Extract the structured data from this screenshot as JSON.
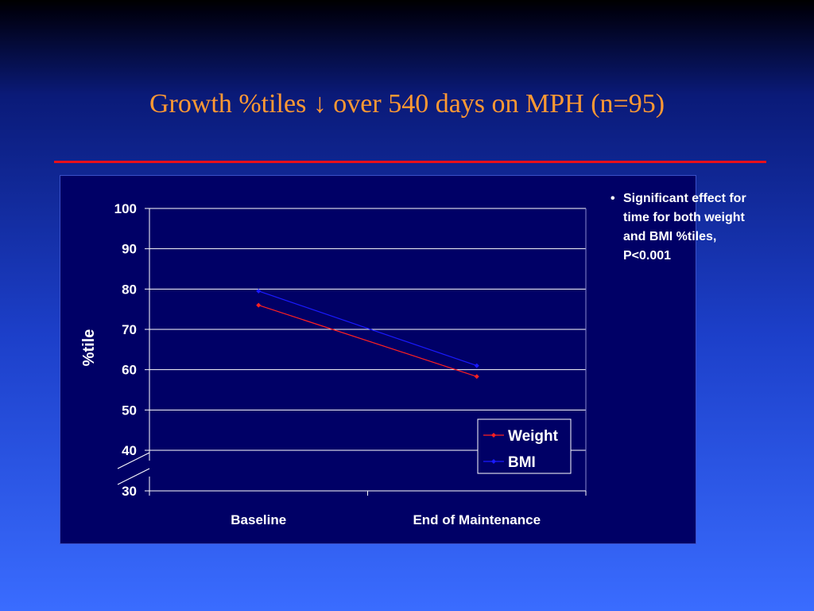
{
  "slide": {
    "title": "Growth %tiles ↓ over 540 days on MPH (n=95)",
    "title_color": "#ff9933",
    "rule_color": "#e8101a",
    "note_bullet": "•",
    "note": "Significant effect for time for both weight and BMI %tiles, P<0.001"
  },
  "chart_data": {
    "type": "line",
    "title": "",
    "xlabel": "",
    "ylabel": "%tile",
    "categories": [
      "Baseline",
      "End of Maintenance"
    ],
    "y_ticks": [
      "30",
      "40",
      "50",
      "60",
      "70",
      "80",
      "90",
      "100"
    ],
    "y_tick_values": [
      30,
      40,
      50,
      60,
      70,
      80,
      90,
      100
    ],
    "ylim": [
      30,
      100
    ],
    "axis_break": true,
    "grid": true,
    "legend_position": "bottom-right",
    "series": [
      {
        "name": "Weight",
        "values": [
          76,
          58.3
        ],
        "color": "#ff2020"
      },
      {
        "name": "BMI",
        "values": [
          79.5,
          61
        ],
        "color": "#1a1aff"
      }
    ]
  }
}
